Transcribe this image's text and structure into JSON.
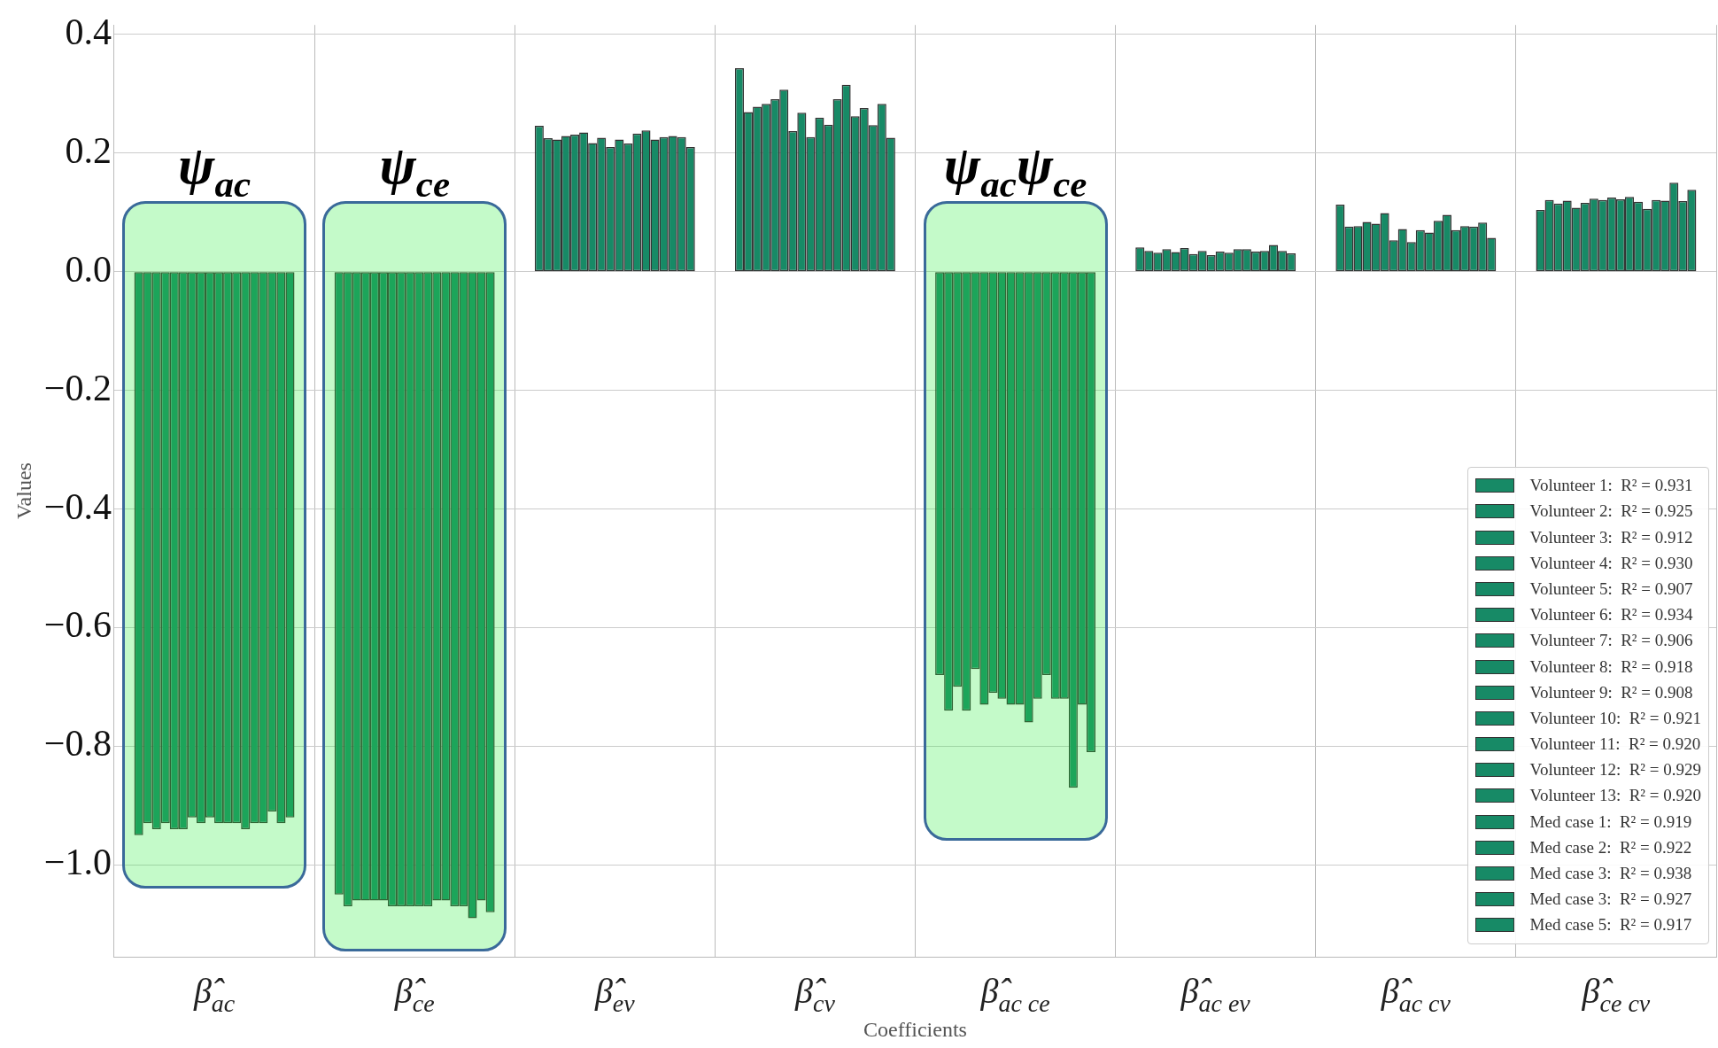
{
  "chart_data": {
    "type": "bar",
    "xlabel": "Coefficients",
    "ylabel": "Values",
    "categories": [
      "β̂$_{ac}$",
      "β̂$_{ce}$",
      "β̂$_{ev}$",
      "β̂$_{cv}$",
      "β̂$_{ac ce}$",
      "β̂$_{ac ev}$",
      "β̂$_{ac cv}$",
      "β̂$_{ce cv}$"
    ],
    "series": [
      {
        "name": "Volunteer 1:  R² = 0.931",
        "color": "#178a66",
        "values": [
          -0.95,
          -1.05,
          0.246,
          0.343,
          -0.68,
          0.041,
          0.113,
          0.104
        ]
      },
      {
        "name": "Volunteer 2:  R² = 0.925",
        "color": "#178a66",
        "values": [
          -0.93,
          -1.07,
          0.225,
          0.269,
          -0.74,
          0.035,
          0.076,
          0.121
        ]
      },
      {
        "name": "Volunteer 3:  R² = 0.912",
        "color": "#178a66",
        "values": [
          -0.94,
          -1.06,
          0.223,
          0.278,
          -0.7,
          0.032,
          0.077,
          0.115
        ]
      },
      {
        "name": "Volunteer 4:  R² = 0.930",
        "color": "#178a66",
        "values": [
          -0.93,
          -1.06,
          0.229,
          0.283,
          -0.74,
          0.038,
          0.084,
          0.12
        ]
      },
      {
        "name": "Volunteer 5:  R² = 0.907",
        "color": "#178a66",
        "values": [
          -0.94,
          -1.06,
          0.231,
          0.291,
          -0.67,
          0.033,
          0.081,
          0.108
        ]
      },
      {
        "name": "Volunteer 6:  R² = 0.934",
        "color": "#178a66",
        "values": [
          -0.94,
          -1.06,
          0.235,
          0.307,
          -0.73,
          0.04,
          0.099,
          0.116
        ]
      },
      {
        "name": "Volunteer 7:  R² = 0.906",
        "color": "#178a66",
        "values": [
          -0.92,
          -1.07,
          0.217,
          0.237,
          -0.71,
          0.03,
          0.053,
          0.123
        ]
      },
      {
        "name": "Volunteer 8:  R² = 0.918",
        "color": "#178a66",
        "values": [
          -0.93,
          -1.07,
          0.226,
          0.268,
          -0.72,
          0.035,
          0.072,
          0.121
        ]
      },
      {
        "name": "Volunteer 9:  R² = 0.908",
        "color": "#178a66",
        "values": [
          -0.92,
          -1.07,
          0.21,
          0.227,
          -0.73,
          0.028,
          0.05,
          0.125
        ]
      },
      {
        "name": "Volunteer 10:  R² = 0.921",
        "color": "#178a66",
        "values": [
          -0.93,
          -1.07,
          0.223,
          0.26,
          -0.73,
          0.034,
          0.07,
          0.122
        ]
      },
      {
        "name": "Volunteer 11:  R² = 0.920",
        "color": "#178a66",
        "values": [
          -0.93,
          -1.07,
          0.216,
          0.248,
          -0.76,
          0.032,
          0.066,
          0.126
        ]
      },
      {
        "name": "Volunteer 12:  R² = 0.929",
        "color": "#178a66",
        "values": [
          -0.93,
          -1.06,
          0.233,
          0.291,
          -0.72,
          0.038,
          0.086,
          0.118
        ]
      },
      {
        "name": "Volunteer 13:  R² = 0.920",
        "color": "#178a66",
        "values": [
          -0.94,
          -1.06,
          0.238,
          0.315,
          -0.68,
          0.038,
          0.096,
          0.106
        ]
      },
      {
        "name": "Med case 1:  R² = 0.919",
        "color": "#178a66",
        "values": [
          -0.93,
          -1.07,
          0.223,
          0.262,
          -0.72,
          0.034,
          0.07,
          0.121
        ]
      },
      {
        "name": "Med case 2:  R² = 0.922",
        "color": "#178a66",
        "values": [
          -0.93,
          -1.07,
          0.227,
          0.276,
          -0.72,
          0.035,
          0.077,
          0.12
        ]
      },
      {
        "name": "Med case 3:  R² = 0.938",
        "color": "#178a66",
        "values": [
          -0.91,
          -1.09,
          0.229,
          0.247,
          -0.87,
          0.045,
          0.076,
          0.15
        ]
      },
      {
        "name": "Med case 3:  R² = 0.927",
        "color": "#178a66",
        "values": [
          -0.93,
          -1.06,
          0.227,
          0.283,
          -0.73,
          0.035,
          0.083,
          0.119
        ]
      },
      {
        "name": "Med case 5:  R² = 0.917",
        "color": "#178a66",
        "values": [
          -0.92,
          -1.08,
          0.21,
          0.226,
          -0.81,
          0.031,
          0.057,
          0.138
        ]
      }
    ],
    "ylim": [
      -1.155,
      0.416
    ],
    "yticks": [
      {
        "value": 0.4,
        "label": "0.4"
      },
      {
        "value": 0.2,
        "label": "0.2"
      },
      {
        "value": 0,
        "label": "0.0"
      },
      {
        "value": -0.2,
        "label": "−0.2"
      },
      {
        "value": -0.4,
        "label": "−0.4"
      },
      {
        "value": -0.6,
        "label": "−0.6"
      },
      {
        "value": -0.8,
        "label": "−0.8"
      },
      {
        "value": -1.0,
        "label": "−1.0"
      }
    ],
    "annotations": [
      "ψ$_{ac}$",
      "ψ$_{ce}$",
      "ψ$_{ac}$ψ$_{ce}$"
    ],
    "grid": true,
    "legend": "bottom right"
  }
}
